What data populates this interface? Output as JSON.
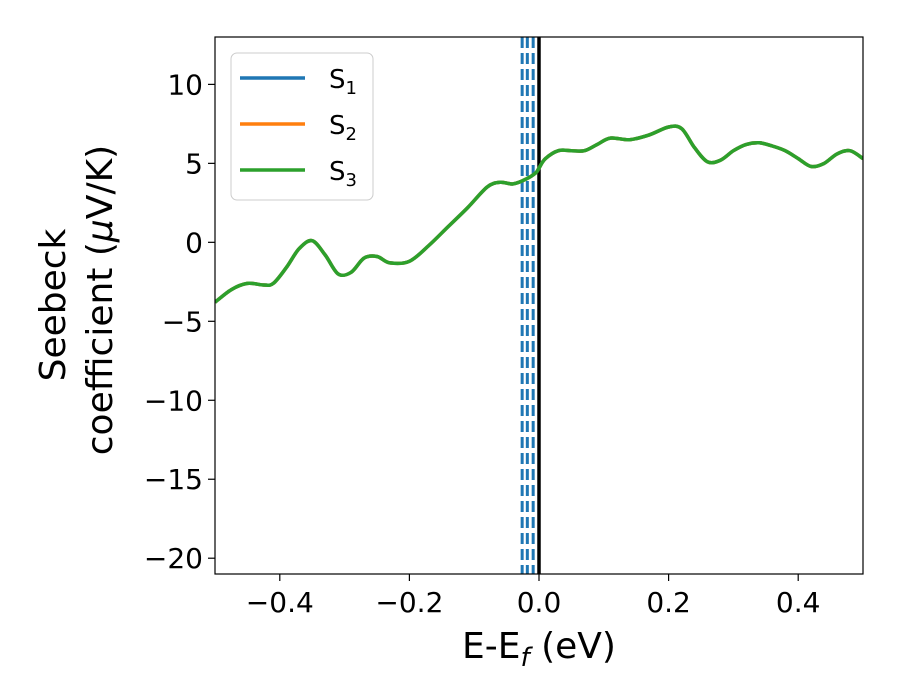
{
  "chart_data": {
    "type": "line",
    "xlabel": "E-E",
    "xlabel_sub": "f",
    "xlabel_unit": " (eV)",
    "ylabel_line1": "Seebeck",
    "ylabel_line2": "coefficient  (",
    "ylabel_mu": "μ",
    "ylabel_unit": "V/K)",
    "xlim": [
      -0.5,
      0.5
    ],
    "ylim": [
      -21,
      13
    ],
    "xticks": [
      -0.4,
      -0.2,
      0.0,
      0.2,
      0.4
    ],
    "xtick_labels": [
      "−0.4",
      "−0.2",
      "0.0",
      "0.2",
      "0.4"
    ],
    "yticks": [
      10,
      5,
      0,
      -5,
      -10,
      -15,
      -20
    ],
    "ytick_labels": [
      "10",
      "5",
      "0",
      "−5",
      "−10",
      "−15",
      "−20"
    ],
    "legend_position": "top-left",
    "grid": false,
    "series": [
      {
        "name": "S",
        "sub": "1",
        "color": "#1f77b4",
        "x": [
          -0.5,
          -0.475,
          -0.45,
          -0.425,
          -0.41,
          -0.39,
          -0.37,
          -0.35,
          -0.33,
          -0.31,
          -0.29,
          -0.27,
          -0.25,
          -0.23,
          -0.2,
          -0.17,
          -0.14,
          -0.11,
          -0.08,
          -0.06,
          -0.04,
          -0.02,
          -0.005,
          0.0,
          0.01,
          0.03,
          0.05,
          0.07,
          0.09,
          0.11,
          0.14,
          0.17,
          0.2,
          0.22,
          0.24,
          0.26,
          0.28,
          0.3,
          0.32,
          0.34,
          0.36,
          0.38,
          0.4,
          0.42,
          0.44,
          0.46,
          0.48,
          0.5
        ],
        "y": [
          -3.8,
          -3.0,
          -2.6,
          -2.7,
          -2.6,
          -1.6,
          -0.4,
          0.1,
          -0.8,
          -2.0,
          -1.9,
          -1.0,
          -0.9,
          -1.3,
          -1.2,
          -0.2,
          1.0,
          2.2,
          3.5,
          3.8,
          3.7,
          4.0,
          4.4,
          4.7,
          5.3,
          5.8,
          5.8,
          5.8,
          6.2,
          6.6,
          6.5,
          6.8,
          7.3,
          7.2,
          6.0,
          5.1,
          5.2,
          5.8,
          6.2,
          6.3,
          6.1,
          5.8,
          5.3,
          4.8,
          5.0,
          5.6,
          5.8,
          5.3
        ]
      },
      {
        "name": "S",
        "sub": "2",
        "color": "#ff7f0e",
        "x": [
          -0.5,
          -0.475,
          -0.45,
          -0.425,
          -0.41,
          -0.39,
          -0.37,
          -0.35,
          -0.33,
          -0.31,
          -0.29,
          -0.27,
          -0.25,
          -0.23,
          -0.2,
          -0.17,
          -0.14,
          -0.11,
          -0.08,
          -0.06,
          -0.04,
          -0.02,
          -0.005,
          0.0,
          0.01,
          0.03,
          0.05,
          0.07,
          0.09,
          0.11,
          0.14,
          0.17,
          0.2,
          0.22,
          0.24,
          0.26,
          0.28,
          0.3,
          0.32,
          0.34,
          0.36,
          0.38,
          0.4,
          0.42,
          0.44,
          0.46,
          0.48,
          0.5
        ],
        "y": [
          -3.8,
          -3.0,
          -2.6,
          -2.7,
          -2.6,
          -1.6,
          -0.4,
          0.1,
          -0.8,
          -2.0,
          -1.9,
          -1.0,
          -0.9,
          -1.3,
          -1.2,
          -0.2,
          1.0,
          2.2,
          3.5,
          3.8,
          3.7,
          4.0,
          4.4,
          4.7,
          5.3,
          5.8,
          5.8,
          5.8,
          6.2,
          6.6,
          6.5,
          6.8,
          7.3,
          7.2,
          6.0,
          5.1,
          5.2,
          5.8,
          6.2,
          6.3,
          6.1,
          5.8,
          5.3,
          4.8,
          5.0,
          5.6,
          5.8,
          5.3
        ]
      },
      {
        "name": "S",
        "sub": "3",
        "color": "#2ca02c",
        "x": [
          -0.5,
          -0.475,
          -0.45,
          -0.425,
          -0.41,
          -0.39,
          -0.37,
          -0.35,
          -0.33,
          -0.31,
          -0.29,
          -0.27,
          -0.25,
          -0.23,
          -0.2,
          -0.17,
          -0.14,
          -0.11,
          -0.08,
          -0.06,
          -0.04,
          -0.02,
          -0.005,
          0.0,
          0.01,
          0.03,
          0.05,
          0.07,
          0.09,
          0.11,
          0.14,
          0.17,
          0.2,
          0.22,
          0.24,
          0.26,
          0.28,
          0.3,
          0.32,
          0.34,
          0.36,
          0.38,
          0.4,
          0.42,
          0.44,
          0.46,
          0.48,
          0.5
        ],
        "y": [
          -3.8,
          -3.0,
          -2.6,
          -2.7,
          -2.6,
          -1.6,
          -0.4,
          0.1,
          -0.8,
          -2.0,
          -1.9,
          -1.0,
          -0.9,
          -1.3,
          -1.2,
          -0.2,
          1.0,
          2.2,
          3.5,
          3.8,
          3.7,
          4.0,
          4.4,
          4.7,
          5.3,
          5.8,
          5.8,
          5.8,
          6.2,
          6.6,
          6.5,
          6.8,
          7.3,
          7.2,
          6.0,
          5.1,
          5.2,
          5.8,
          6.2,
          6.3,
          6.1,
          5.8,
          5.3,
          4.8,
          5.0,
          5.6,
          5.8,
          5.3
        ]
      }
    ],
    "vlines": [
      {
        "x": 0.0,
        "color": "#000000",
        "style": "solid"
      },
      {
        "x": -0.026,
        "color": "#1f77b4",
        "style": "dashed"
      },
      {
        "x": -0.018,
        "color": "#1f77b4",
        "style": "dashed"
      },
      {
        "x": -0.009,
        "color": "#1f77b4",
        "style": "dashed"
      }
    ]
  }
}
